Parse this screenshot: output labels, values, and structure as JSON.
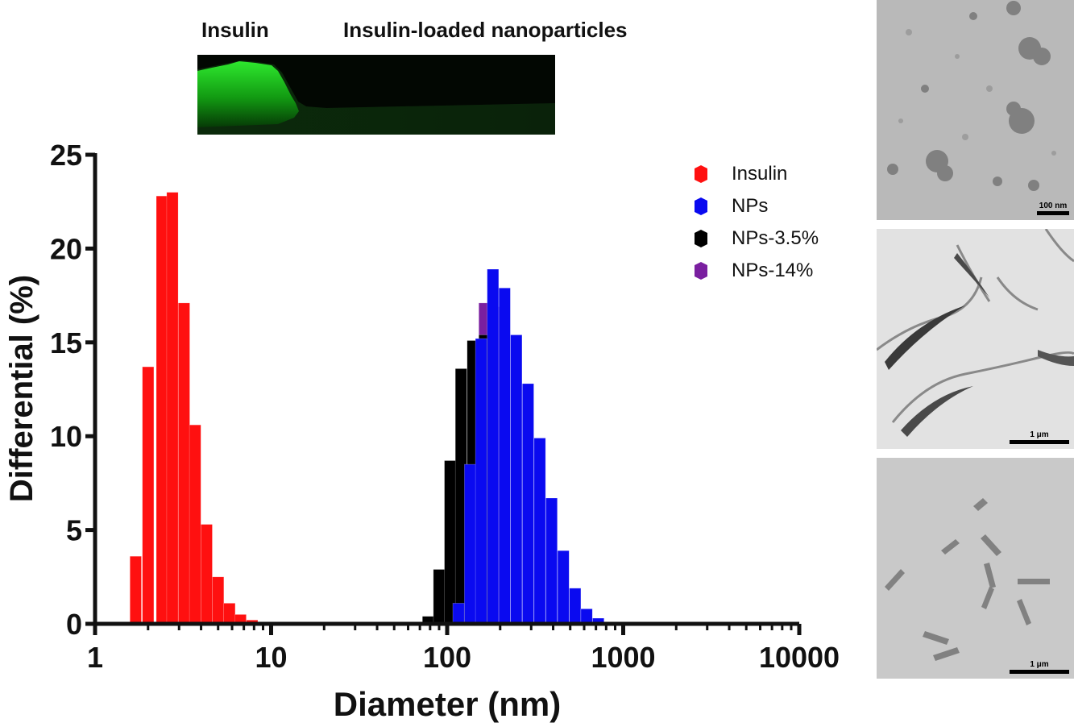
{
  "inset": {
    "label_left": "Insulin",
    "label_right": "Insulin-loaded nanoparticles"
  },
  "tem_panels": [
    {
      "scale_label": "100 nm",
      "image": "tem-micrograph-nanoparticle-aggregates"
    },
    {
      "scale_label": "1 μm",
      "image": "tem-micrograph-branched-fibrils"
    },
    {
      "scale_label": "1 μm",
      "image": "tem-micrograph-spindle-particles"
    }
  ],
  "chart_data": {
    "type": "bar",
    "xlabel": "Diameter (nm)",
    "ylabel": "Differential (%)",
    "xscale": "log",
    "xlim": [
      1,
      10000
    ],
    "ylim": [
      0,
      25
    ],
    "xticks": [
      "1",
      "10",
      "100",
      "1000",
      "10000"
    ],
    "yticks": [
      "0",
      "5",
      "10",
      "15",
      "20",
      "25"
    ],
    "legend_position": "top-right",
    "series": [
      {
        "name": "Insulin",
        "color": "#ff1010",
        "x": [
          1.7,
          2.0,
          2.4,
          2.75,
          3.2,
          3.7,
          4.3,
          5.0,
          5.8,
          6.7,
          7.8,
          9.0
        ],
        "values": [
          3.6,
          13.7,
          22.8,
          23.0,
          17.1,
          10.6,
          5.3,
          2.5,
          1.1,
          0.5,
          0.2,
          0.1
        ]
      },
      {
        "name": "NPs-14%",
        "color": "#7a1fa0",
        "x": [
          163,
          190
        ],
        "values": [
          17.1,
          16.9
        ]
      },
      {
        "name": "NPs-3.5%",
        "color": "#000000",
        "x": [
          78,
          90,
          104,
          120,
          140,
          163
        ],
        "values": [
          0.4,
          2.9,
          8.7,
          13.6,
          15.1,
          15.4
        ]
      },
      {
        "name": "NPs",
        "color": "#0a0af0",
        "x": [
          116,
          135,
          156,
          182,
          212,
          247,
          288,
          336,
          392,
          457,
          533,
          620,
          722,
          842
        ],
        "values": [
          1.1,
          8.5,
          15.2,
          18.9,
          17.9,
          15.4,
          12.8,
          9.9,
          6.7,
          3.9,
          1.9,
          0.8,
          0.3,
          0.1
        ]
      }
    ],
    "legend_order": [
      "Insulin",
      "NPs",
      "NPs-3.5%",
      "NPs-14%"
    ]
  }
}
